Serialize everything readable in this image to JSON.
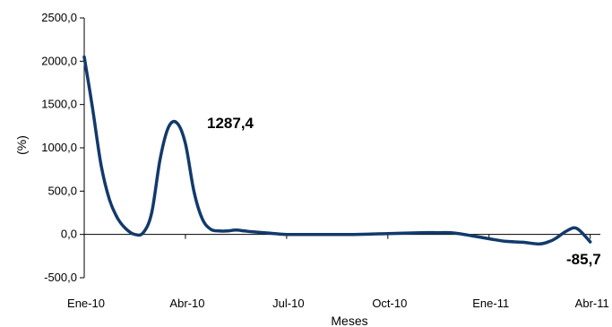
{
  "chart_data": {
    "type": "line",
    "title": "",
    "xlabel": "Meses",
    "ylabel": "(%)",
    "ylim": [
      -500,
      2500
    ],
    "yticks": [
      -500,
      0,
      500,
      1000,
      1500,
      2000,
      2500
    ],
    "ytick_labels": [
      "-500,0",
      "0,0",
      "500,0",
      "1000,0",
      "1500,0",
      "2000,0",
      "2500,0"
    ],
    "xlim": [
      0,
      15.3
    ],
    "xticks": [
      0,
      3,
      6,
      9,
      12,
      15
    ],
    "xtick_labels": [
      "Ene-10",
      "Abr-10",
      "Jul-10",
      "Oct-10",
      "Ene-11",
      "Abr-11"
    ],
    "grid": false,
    "line_color": "#123a6b",
    "series": [
      {
        "x": [
          0,
          0.25,
          0.5,
          0.75,
          1.0,
          1.25,
          1.5,
          1.75,
          2.0,
          2.25,
          2.5,
          2.75,
          3.0,
          3.25,
          3.5,
          3.75,
          4.0,
          4.25,
          4.5,
          4.75,
          5.0,
          5.5,
          6.0,
          7.0,
          8.0,
          9.0,
          10.0,
          10.5,
          11.0,
          12.0,
          12.5,
          13.0,
          13.5,
          13.8,
          14.0,
          14.3,
          14.6,
          15.0
        ],
        "values": [
          2050,
          1450,
          800,
          400,
          180,
          60,
          0,
          20,
          250,
          870,
          1240,
          1287.4,
          1050,
          500,
          180,
          60,
          40,
          40,
          50,
          40,
          30,
          15,
          0,
          0,
          0,
          10,
          20,
          20,
          15,
          -50,
          -80,
          -90,
          -110,
          -80,
          -40,
          40,
          70,
          -85.7
        ]
      }
    ],
    "annotations": [
      {
        "text": "1287,4",
        "x": 3.4,
        "y": 1287.4
      },
      {
        "text": "-85,7",
        "x": 15.1,
        "y": -85.7
      }
    ]
  }
}
